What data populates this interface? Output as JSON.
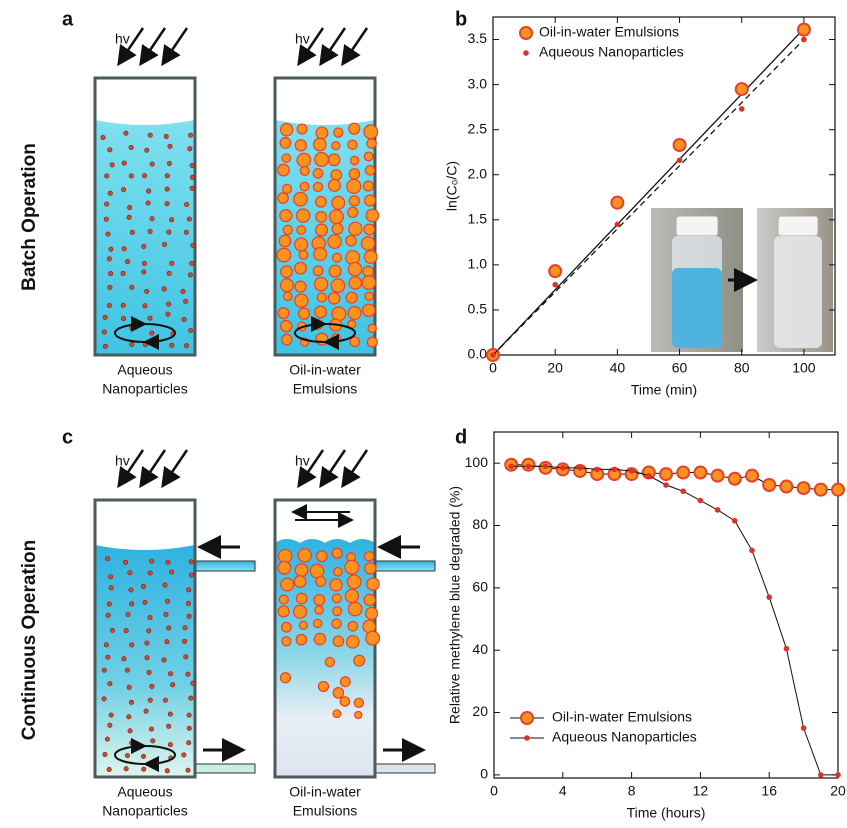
{
  "panel_labels": [
    "a",
    "b",
    "c",
    "d"
  ],
  "row_labels": [
    "Batch Operation",
    "Continuous Operation"
  ],
  "schematics": [
    {
      "light": "hv",
      "caption": [
        "Aqueous",
        "Nanoparticles"
      ]
    },
    {
      "light": "hv",
      "caption": [
        "Oil-in-water",
        "Emulsions"
      ]
    },
    {
      "light": "hv",
      "caption": [
        "Aqueous",
        "Nanoparticles"
      ]
    },
    {
      "light": "hv",
      "caption": [
        "Oil-in-water",
        "Emulsions"
      ]
    }
  ],
  "chart_data": [
    {
      "type": "scatter",
      "x_label": "Time (min)",
      "y_label": "ln(C₀/C)",
      "x": [
        0,
        20,
        40,
        60,
        80,
        100
      ],
      "series": [
        {
          "name": "Oil-in-water Emulsions",
          "color": "#f7931e",
          "edge_color": "#e8402a",
          "marker": "large",
          "line_style": "solid",
          "values": [
            0,
            0.93,
            1.69,
            2.33,
            2.95,
            3.61
          ],
          "fit_x": [
            0,
            100
          ],
          "fit_values": [
            0,
            3.62
          ]
        },
        {
          "name": "Aqueous Nanoparticles",
          "color": "#e0302a",
          "edge_color": "#e0302a",
          "marker": "small",
          "line_style": "dashed",
          "values": [
            0,
            0.78,
            1.45,
            2.16,
            2.73,
            3.5
          ],
          "fit_x": [
            0,
            100
          ],
          "fit_values": [
            0,
            3.5
          ]
        }
      ],
      "xlim": [
        0,
        110
      ],
      "xticks": [
        0,
        20,
        40,
        60,
        80,
        100
      ],
      "ylim": [
        0,
        3.75
      ],
      "yticks": [
        {
          "value": 0,
          "label": "0.0"
        },
        0.5,
        {
          "value": 1,
          "label": "1.0"
        },
        1.5,
        {
          "value": 2,
          "label": "2.0"
        },
        2.5,
        {
          "value": 3,
          "label": "3.0"
        },
        3.5
      ],
      "legend": "upper left",
      "grid": false
    },
    {
      "type": "line",
      "x_label": "Time (hours)",
      "y_label": "Relative methylene blue degraded (%)",
      "x": [
        1,
        2,
        3,
        4,
        5,
        6,
        7,
        8,
        9,
        10,
        11,
        12,
        13,
        14,
        15,
        16,
        17,
        18,
        19,
        20
      ],
      "series": [
        {
          "name": "Oil-in-water Emulsions",
          "color": "#f7931e",
          "edge_color": "#e8402a",
          "marker": "large",
          "values": [
            99.5,
            99.5,
            98.5,
            98,
            97.5,
            96.5,
            96.5,
            96.5,
            97,
            96.5,
            97,
            97,
            96,
            95,
            96,
            93,
            92.5,
            92,
            91.5,
            91.5
          ]
        },
        {
          "name": "Aqueous Nanoparticles",
          "color": "#e0302a",
          "edge_color": "#e0302a",
          "marker": "small",
          "values": [
            99,
            99,
            99,
            98.5,
            98.5,
            98,
            98,
            97.5,
            96,
            93,
            91,
            88,
            85,
            81.5,
            72,
            57,
            40.5,
            15,
            0,
            0
          ]
        }
      ],
      "xlim": [
        0,
        20
      ],
      "xticks": [
        0,
        4,
        8,
        12,
        16,
        20
      ],
      "ylim": [
        -1,
        110
      ],
      "yticks": [
        0,
        20,
        40,
        60,
        80,
        100
      ],
      "legend": "lower left",
      "grid": false
    }
  ]
}
